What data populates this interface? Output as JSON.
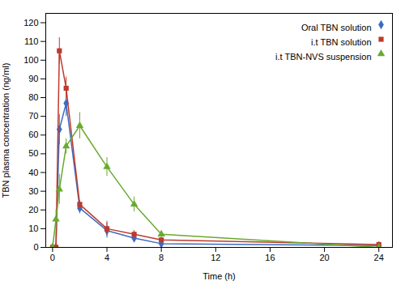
{
  "chart_data": {
    "type": "line",
    "xlabel": "Time (h)",
    "ylabel": "TBN plasma concentration (ng/ml)",
    "x": [
      0,
      0.25,
      0.5,
      1,
      2,
      4,
      6,
      8,
      24
    ],
    "series": [
      {
        "name": "Oral TBN solution",
        "color": "#3d6bbf",
        "marker": "diamond",
        "values": [
          0,
          0,
          63,
          77,
          21,
          9,
          5,
          2,
          1
        ],
        "errors": [
          0,
          0,
          8,
          7,
          3,
          4,
          2,
          1,
          0.5
        ]
      },
      {
        "name": "i.t TBN solution",
        "color": "#c0392b",
        "marker": "square",
        "values": [
          0,
          0,
          105,
          85,
          23,
          10,
          7,
          4,
          1.5
        ],
        "errors": [
          0,
          0,
          7,
          6,
          2,
          4,
          2,
          1.5,
          0.5
        ]
      },
      {
        "name": "i.t TBN-NVS suspension",
        "color": "#6aaa2e",
        "marker": "triangle",
        "values": [
          0,
          15,
          31,
          54,
          65,
          43,
          23,
          7,
          0
        ],
        "errors": [
          0,
          5,
          8,
          4,
          7,
          5,
          4,
          1.5,
          0
        ]
      }
    ],
    "xlim": [
      -0.5,
      25
    ],
    "ylim": [
      0,
      125
    ],
    "xticks": [
      0,
      4,
      8,
      12,
      16,
      20,
      24
    ],
    "yticks": [
      0,
      10,
      20,
      30,
      40,
      50,
      60,
      70,
      80,
      90,
      100,
      110,
      120
    ],
    "legend": "upper right",
    "grid": false
  }
}
